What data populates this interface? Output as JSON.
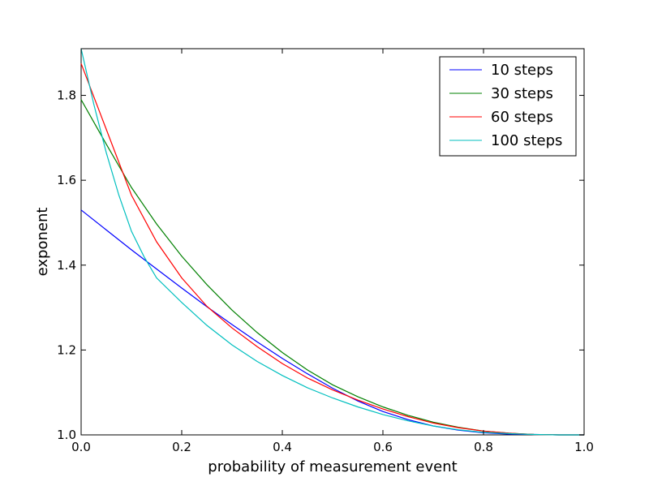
{
  "chart_data": {
    "type": "line",
    "title": "",
    "xlabel": "probability of measurement event",
    "ylabel": "exponent",
    "xlim": [
      0.0,
      1.0
    ],
    "ylim": [
      1.0,
      1.91
    ],
    "xticks": [
      0.0,
      0.2,
      0.4,
      0.6,
      0.8,
      1.0
    ],
    "xtick_labels": [
      "0.0",
      "0.2",
      "0.4",
      "0.6",
      "0.8",
      "1.0"
    ],
    "yticks": [
      1.0,
      1.2,
      1.4,
      1.6,
      1.8
    ],
    "ytick_labels": [
      "1.0",
      "1.2",
      "1.4",
      "1.6",
      "1.8"
    ],
    "grid": false,
    "legend_position": "top-right",
    "series": [
      {
        "name": "10 steps",
        "color": "#0000ff",
        "x": [
          0.0,
          0.05,
          0.1,
          0.15,
          0.2,
          0.25,
          0.3,
          0.35,
          0.4,
          0.45,
          0.5,
          0.55,
          0.6,
          0.65,
          0.7,
          0.75,
          0.8,
          0.85,
          0.9,
          0.95,
          1.0
        ],
        "y": [
          1.53,
          1.483,
          1.436,
          1.391,
          1.346,
          1.302,
          1.26,
          1.219,
          1.18,
          1.144,
          1.11,
          1.08,
          1.055,
          1.036,
          1.021,
          1.011,
          1.005,
          1.002,
          1.001,
          1.0,
          1.0
        ]
      },
      {
        "name": "30 steps",
        "color": "#008000",
        "x": [
          0.0,
          0.05,
          0.1,
          0.15,
          0.2,
          0.25,
          0.3,
          0.35,
          0.4,
          0.45,
          0.5,
          0.55,
          0.6,
          0.65,
          0.7,
          0.75,
          0.8,
          0.85,
          0.9,
          0.95,
          1.0
        ],
        "y": [
          1.79,
          1.685,
          1.583,
          1.497,
          1.421,
          1.354,
          1.294,
          1.241,
          1.194,
          1.153,
          1.118,
          1.09,
          1.066,
          1.046,
          1.03,
          1.018,
          1.009,
          1.004,
          1.001,
          1.0,
          1.0
        ]
      },
      {
        "name": "60 steps",
        "color": "#ff0000",
        "x": [
          0.0,
          0.05,
          0.1,
          0.15,
          0.2,
          0.25,
          0.3,
          0.35,
          0.4,
          0.45,
          0.5,
          0.55,
          0.6,
          0.65,
          0.7,
          0.75,
          0.8,
          0.85,
          0.9,
          0.95,
          1.0
        ],
        "y": [
          1.875,
          1.72,
          1.565,
          1.455,
          1.37,
          1.303,
          1.252,
          1.208,
          1.168,
          1.134,
          1.106,
          1.082,
          1.061,
          1.043,
          1.028,
          1.017,
          1.009,
          1.004,
          1.001,
          1.0,
          1.0
        ]
      },
      {
        "name": "100 steps",
        "color": "#00bfbf",
        "x": [
          0.0,
          0.025,
          0.05,
          0.075,
          0.1,
          0.125,
          0.15,
          0.2,
          0.25,
          0.3,
          0.35,
          0.4,
          0.45,
          0.5,
          0.55,
          0.6,
          0.65,
          0.7,
          0.75,
          0.8,
          0.85,
          0.9,
          0.95,
          1.0
        ],
        "y": [
          1.91,
          1.78,
          1.665,
          1.565,
          1.48,
          1.42,
          1.37,
          1.312,
          1.258,
          1.212,
          1.173,
          1.14,
          1.111,
          1.087,
          1.066,
          1.048,
          1.033,
          1.021,
          1.012,
          1.006,
          1.003,
          1.001,
          1.0,
          1.0
        ]
      }
    ]
  }
}
